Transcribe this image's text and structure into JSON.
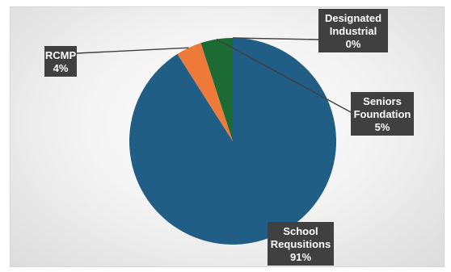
{
  "chart_data": {
    "type": "pie",
    "title": "",
    "slices": [
      {
        "label": "School Requsitions",
        "value": 91,
        "label_text": "91%",
        "color": "#215e85",
        "label_lines": [
          "School",
          "Requsitions",
          "91%"
        ]
      },
      {
        "label": "RCMP",
        "value": 4,
        "label_text": "4%",
        "color": "#ee7a3a",
        "label_lines": [
          "RCMP",
          "4%"
        ]
      },
      {
        "label": "Seniors Foundation",
        "value": 5,
        "label_text": "5%",
        "color": "#1d6b34",
        "label_lines": [
          "Seniors",
          "Foundation",
          "5%"
        ]
      },
      {
        "label": "Designated Industrial",
        "value": 0,
        "label_text": "0%",
        "color": "#2a5a8a",
        "label_lines": [
          "Designated",
          "Industrial",
          "0%"
        ]
      }
    ],
    "legend": false
  }
}
